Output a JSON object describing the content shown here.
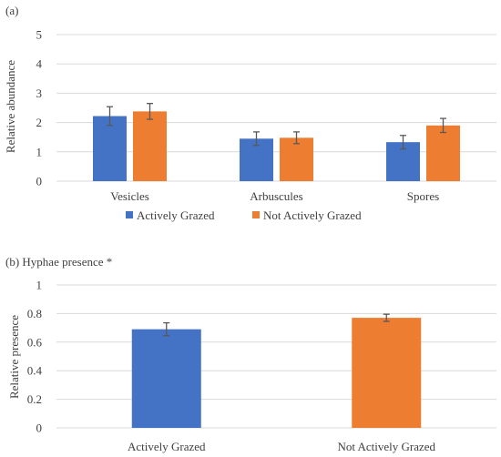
{
  "chart_data": [
    {
      "panel": "(a)",
      "type": "bar",
      "title": "",
      "xlabel": "",
      "ylabel": "Relative abundance",
      "ylim": [
        0,
        5
      ],
      "yticks": [
        "0",
        "1",
        "2",
        "3",
        "4",
        "5"
      ],
      "categories": [
        "Vesicles",
        "Arbuscules",
        "Spores"
      ],
      "series": [
        {
          "name": "Actively Grazed",
          "color": "#4472C4",
          "values": [
            2.22,
            1.45,
            1.33
          ],
          "errors": [
            0.32,
            0.23,
            0.23
          ]
        },
        {
          "name": "Not Actively Grazed",
          "color": "#ED7D31",
          "values": [
            2.38,
            1.48,
            1.9
          ],
          "errors": [
            0.27,
            0.2,
            0.24
          ]
        }
      ],
      "legend_position": "bottom",
      "grid": true
    },
    {
      "panel": "(b) Hyphae presence *",
      "type": "bar",
      "title": "",
      "xlabel": "",
      "ylabel": "Relative presence",
      "ylim": [
        0,
        1
      ],
      "yticks": [
        "0",
        "0.2",
        "0.4",
        "0.6",
        "0.8",
        "1"
      ],
      "categories": [
        "Actively Grazed",
        "Not Actively Grazed"
      ],
      "series": [
        {
          "values": [
            0.69,
            0.77
          ],
          "errors": [
            0.045,
            0.025
          ],
          "colors": [
            "#4472C4",
            "#ED7D31"
          ]
        }
      ],
      "grid": true
    }
  ],
  "style": {
    "grid_color": "#d9d9d9",
    "error_bar_color": "#595959",
    "text_color": "#404040"
  }
}
